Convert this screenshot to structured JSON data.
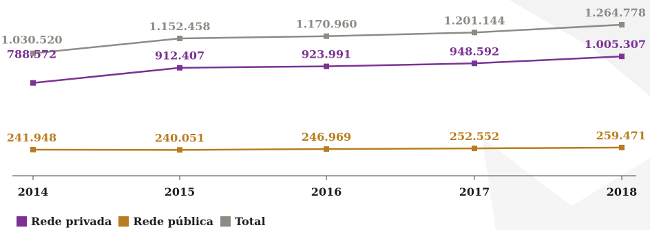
{
  "chart_data": {
    "type": "line",
    "title": "",
    "xlabel": "",
    "ylabel": "",
    "categories": [
      "2014",
      "2015",
      "2016",
      "2017",
      "2018"
    ],
    "series": [
      {
        "name": "Rede privada",
        "color": "#7b3294",
        "values": [
          788572,
          912407,
          923991,
          948592,
          1005307
        ],
        "labels": [
          "788.572",
          "912.407",
          "923.991",
          "948.592",
          "1.005.307"
        ]
      },
      {
        "name": "Rede pública",
        "color": "#b87d1e",
        "values": [
          241948,
          240051,
          246969,
          252552,
          259471
        ],
        "labels": [
          "241.948",
          "240.051",
          "246.969",
          "252.552",
          "259.471"
        ]
      },
      {
        "name": "Total",
        "color": "#8c8c85",
        "values": [
          1030520,
          1152458,
          1170960,
          1201144,
          1264778
        ],
        "labels": [
          "1.030.520",
          "1.152.458",
          "1.170.960",
          "1.201.144",
          "1.264.778"
        ]
      }
    ],
    "legend_position": "bottom-left",
    "grid": false
  }
}
